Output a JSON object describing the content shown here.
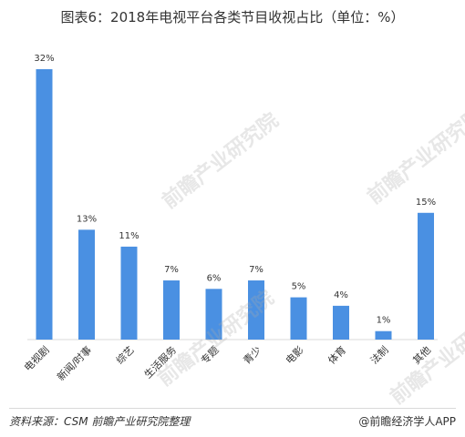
{
  "title": "图表6：2018年电视平台各类节目收视占比（单位：%）",
  "footer": {
    "source": "资料来源：CSM 前瞻产业研究院整理",
    "brand": "@前瞻经济学人APP"
  },
  "watermark": "前瞻产业研究院",
  "colors": {
    "bar": "#4a90e2"
  },
  "chart_data": {
    "type": "bar",
    "categories": [
      "电视剧",
      "新闻/时事",
      "综艺",
      "生活服务",
      "专题",
      "青少",
      "电影",
      "体育",
      "法制",
      "其他"
    ],
    "values": [
      32,
      13,
      11,
      7,
      6,
      7,
      5,
      4,
      1,
      15
    ],
    "value_labels": [
      "32%",
      "13%",
      "11%",
      "7%",
      "6%",
      "7%",
      "5%",
      "4%",
      "1%",
      "15%"
    ],
    "title": "图表6：2018年电视平台各类节目收视占比（单位：%）",
    "xlabel": "",
    "ylabel": "",
    "ylim": [
      0,
      32
    ],
    "grid": false,
    "legend": "none"
  }
}
